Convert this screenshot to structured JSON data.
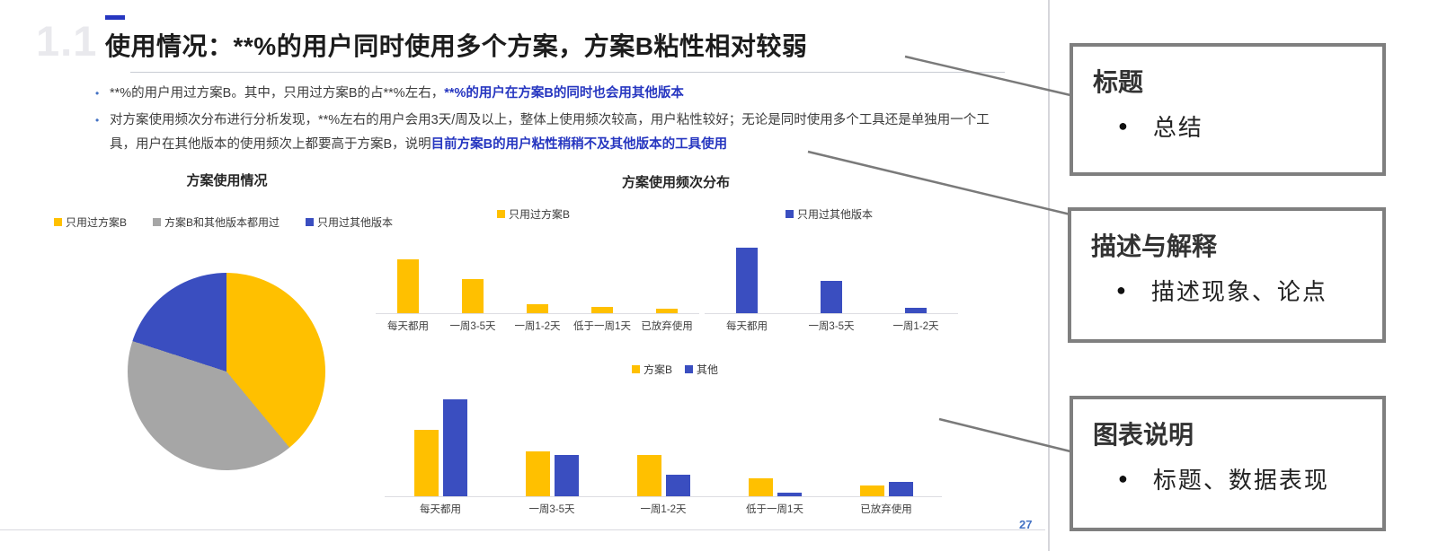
{
  "slide": {
    "section_number": "1.1",
    "title": "使用情况：**%的用户同时使用多个方案，方案B粘性相对较弱",
    "bullets": [
      {
        "segments": [
          {
            "text": "**%的用户用过方案B。其中，只用过方案B的占**%左右，",
            "em": false
          },
          {
            "text": "**%的用户在方案B的同时也会用其他版本",
            "em": true
          }
        ]
      },
      {
        "segments": [
          {
            "text": "对方案使用频次分布进行分析发现，**%左右的用户会用3天/周及以上，整体上使用频次较高，用户粘性较好；无论是同时使用多个工具还是单独用一个工具，用户在其他版本的使用频次上都要高于方案B，说明",
            "em": false
          },
          {
            "text": "目前方案B的用户粘性稍稍不及其他版本的工具使用",
            "em": true
          }
        ]
      }
    ],
    "page_number": "27"
  },
  "colors": {
    "yellow": "#FFC000",
    "gray": "#A6A6A6",
    "blue": "#3A4EC0",
    "text_blue": "#2636C0",
    "box_border": "#7F7F7F",
    "connector": "#7A7A7A",
    "page_number_blue": "#4472C4"
  },
  "chart_data": [
    {
      "type": "pie",
      "title": "方案使用情况",
      "labels": [
        "只用过方案B",
        "方案B和其他版本都用过",
        "只用过其他版本"
      ],
      "values": [
        39,
        41,
        20
      ],
      "colors": [
        "#FFC000",
        "#A6A6A6",
        "#3A4EC0"
      ],
      "values_are_estimates": true,
      "legend_position": "top"
    },
    {
      "type": "bar",
      "section_title": "方案使用频次分布",
      "series_name": "只用过方案B",
      "color": "#FFC000",
      "categories": [
        "每天都用",
        "一周3-5天",
        "一周1-2天",
        "低于一周1天",
        "已放弃使用"
      ],
      "values": [
        50,
        32,
        8,
        6,
        4
      ],
      "values_are_estimates": true
    },
    {
      "type": "bar",
      "section_title": "方案使用频次分布",
      "series_name": "只用过其他版本",
      "color": "#3A4EC0",
      "categories": [
        "每天都用",
        "一周3-5天",
        "一周1-2天"
      ],
      "values": [
        63,
        31,
        5
      ],
      "values_are_estimates": true
    },
    {
      "type": "bar",
      "section_title": "方案使用频次分布",
      "categories": [
        "每天都用",
        "一周3-5天",
        "一周1-2天",
        "低于一周1天",
        "已放弃使用"
      ],
      "series": [
        {
          "name": "方案B",
          "color": "#FFC000",
          "values": [
            37,
            25,
            23,
            10,
            6
          ]
        },
        {
          "name": "其他",
          "color": "#3A4EC0",
          "values": [
            54,
            23,
            12,
            2,
            8
          ]
        }
      ],
      "values_are_estimates": true
    }
  ],
  "annotations": {
    "boxes": [
      {
        "heading": "标题",
        "bullet": "总结"
      },
      {
        "heading": "描述与解释",
        "bullet": "描述现象、论点"
      },
      {
        "heading": "图表说明",
        "bullet": "标题、数据表现"
      }
    ]
  }
}
